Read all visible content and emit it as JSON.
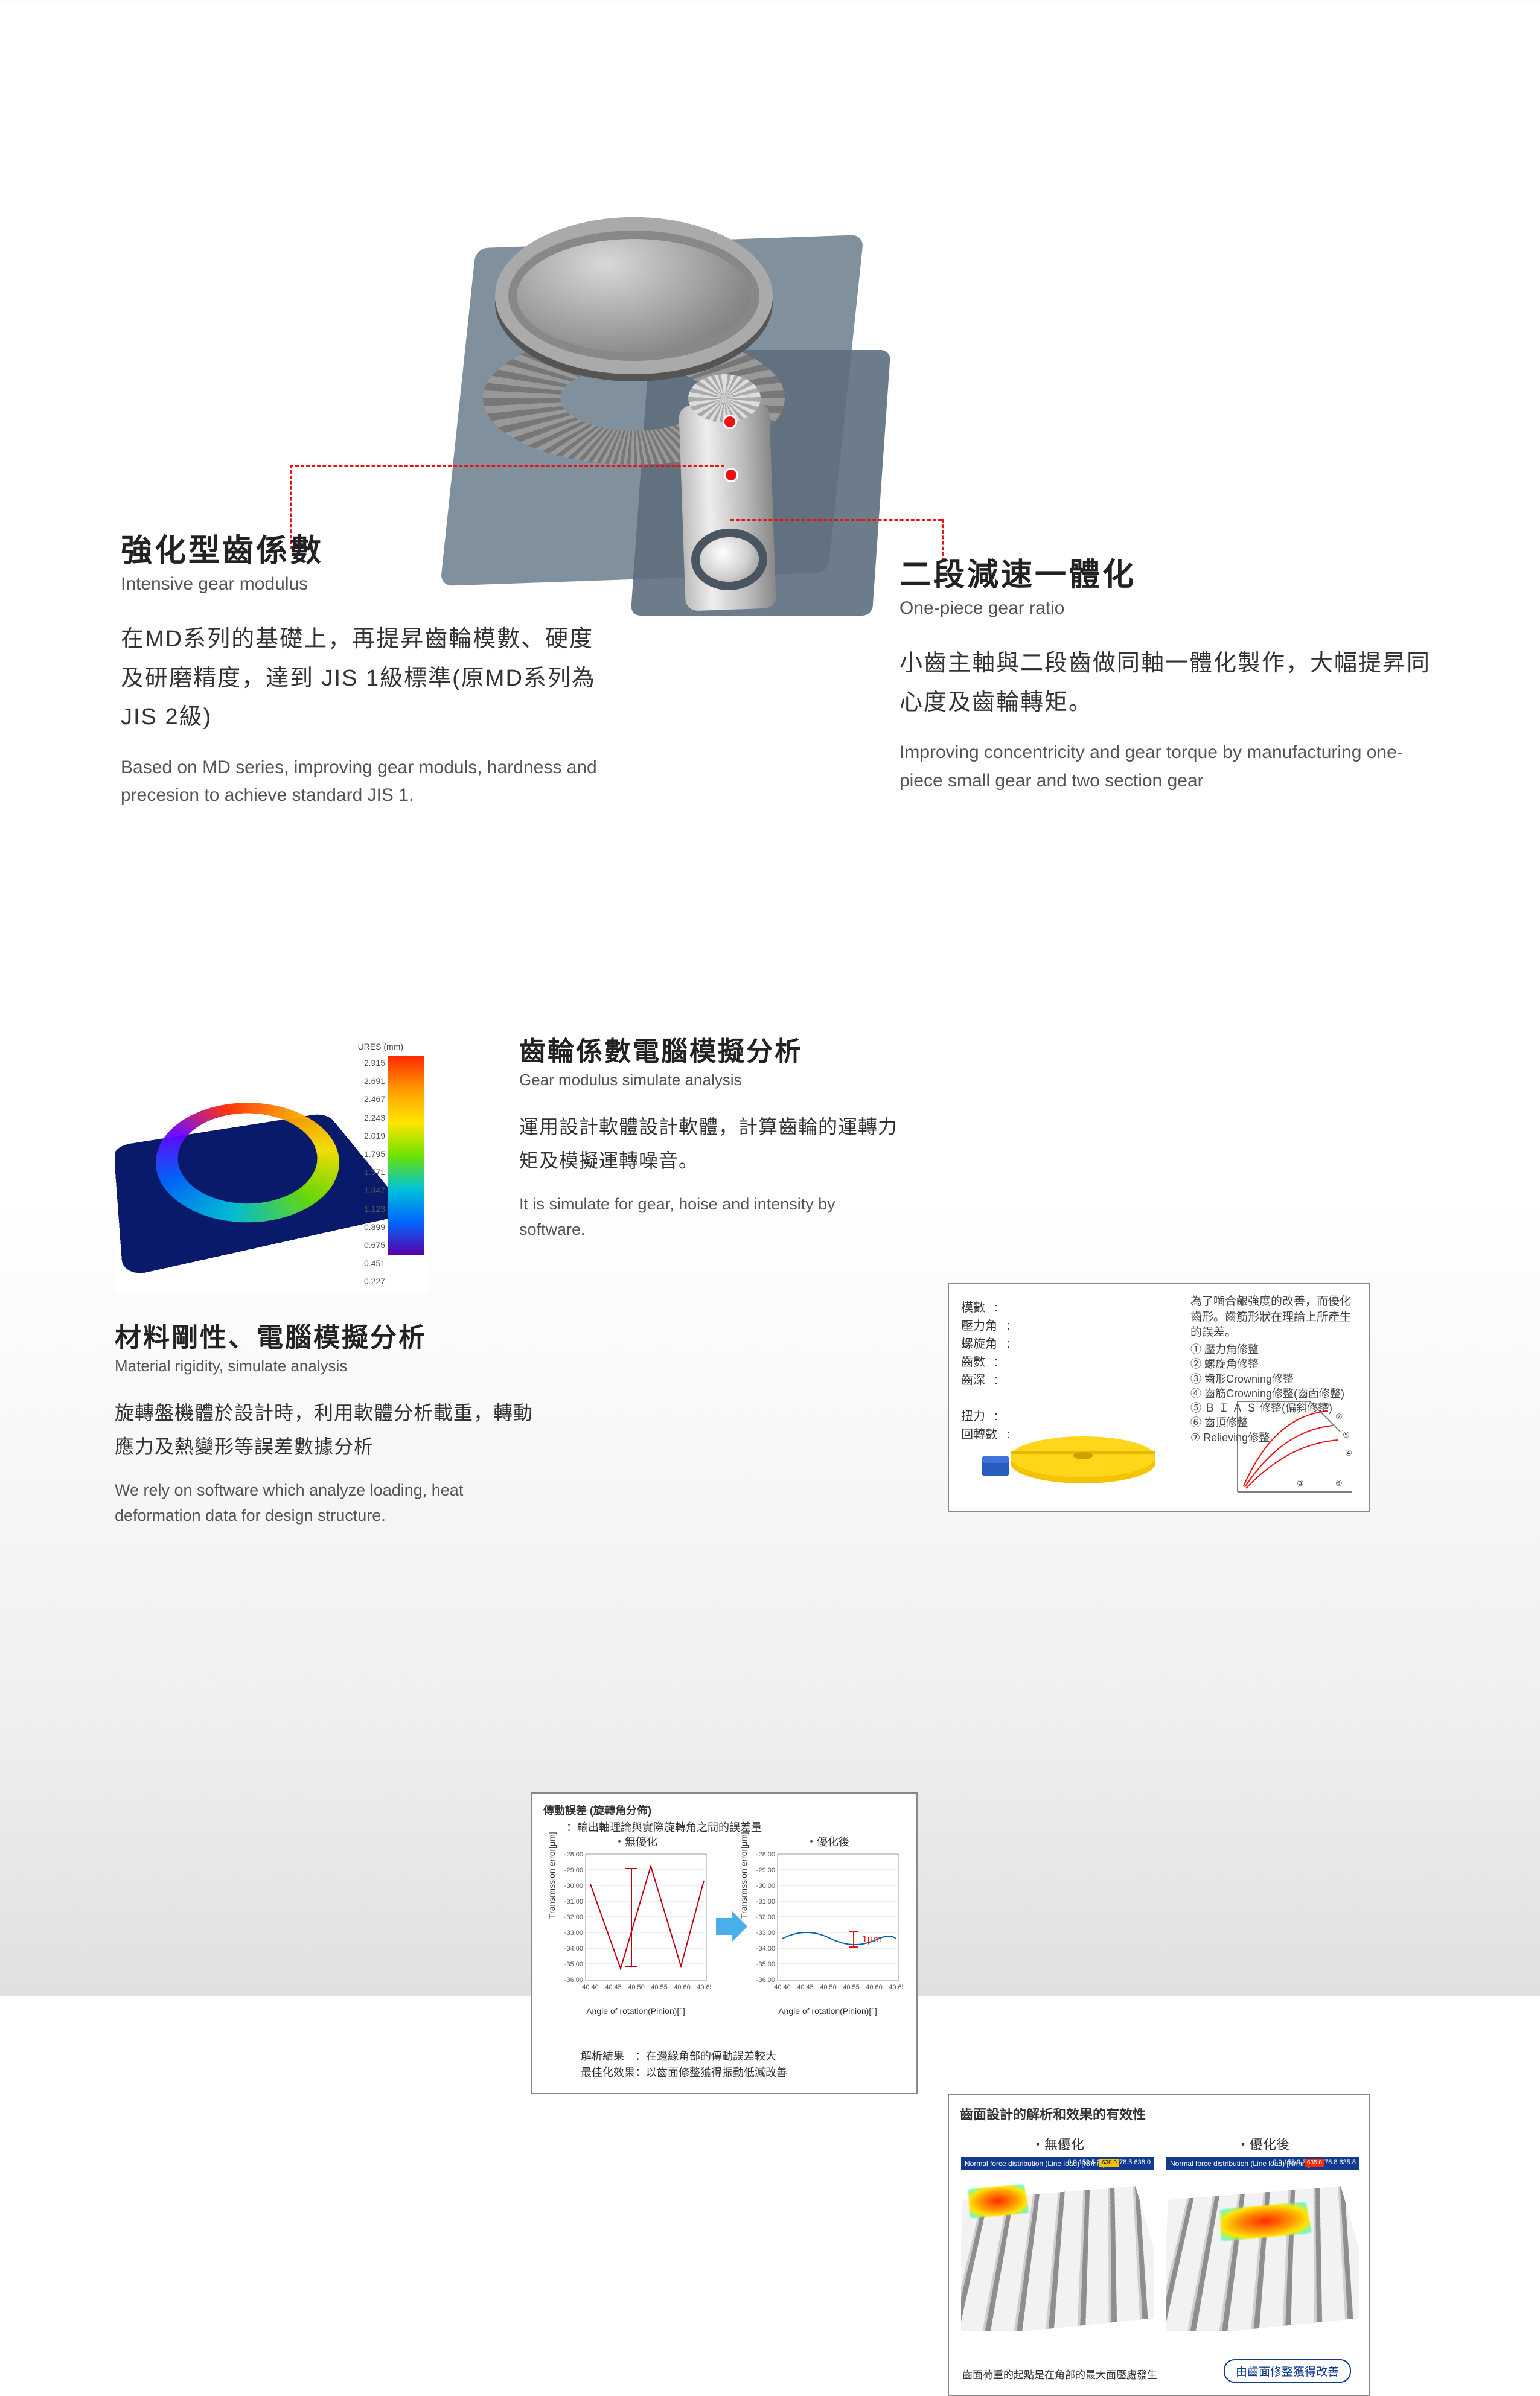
{
  "hero": {
    "left": {
      "title_zh": "強化型齒係數",
      "title_en": "Intensive gear modulus",
      "body_zh": "在MD系列的基礎上，再提昇齒輪模數、硬度及研磨精度，達到 JIS 1級標準(原MD系列為 JIS 2級)",
      "body_en": "Based on MD series, improving gear moduls, hardness and precesion to achieve standard JIS 1."
    },
    "right": {
      "title_zh": "二段減速一體化",
      "title_en": "One-piece gear ratio",
      "body_zh": "小齒主軸與二段齒做同軸一體化製作，大幅提昇同心度及齒輪轉矩。",
      "body_en": "Improving concentricity and gear torque by manufacturing one-piece small gear and two section gear"
    }
  },
  "material": {
    "title_zh": "材料剛性、電腦模擬分析",
    "title_en": "Material rigidity, simulate analysis",
    "body_zh": "旋轉盤機體於設計時，利用軟體分析載重，轉動應力及熱變形等誤差數據分析",
    "body_en": "We rely on software which analyze loading, heat deformation data for design structure.",
    "legend_title": "URES (mm)",
    "legend_ticks": [
      "2.915",
      "2.691",
      "2.467",
      "2.243",
      "2.019",
      "1.795",
      "1.571",
      "1.347",
      "1.123",
      "0.899",
      "0.675",
      "0.451",
      "0.227"
    ]
  },
  "modulus": {
    "title_zh": "齒輪係數電腦模擬分析",
    "title_en": "Gear modulus simulate analysis",
    "body_zh": "運用設計軟體設計軟體，計算齒輪的運轉力矩及模擬運轉噪音。",
    "body_en": "It is simulate for gear, hoise and intensity by software."
  },
  "param_box": {
    "labels": [
      "模數",
      "壓力角",
      "螺旋角",
      "齒數",
      "齒深",
      "",
      "扭力",
      "回轉數"
    ],
    "note": "為了嚙合齦強度的改善，而優化齒形。齒筋形狀在理論上所產生的誤差。",
    "list": [
      "① 壓力角修整",
      "② 螺旋角修整",
      "③ 齒形Crowning修整",
      "④ 齒筋Crowning修整(齒面修整)",
      "⑤ Ｂ Ｉ Ａ Ｓ 修整(偏斜修整)",
      "⑥ 齒頂修整",
      "⑦ Relieving修整"
    ],
    "gear_colors": {
      "disc": "#f4c400",
      "drive": "#2a5bbf"
    },
    "diagram": {
      "axis_color": "#555",
      "curve_color": "#e11",
      "markers": [
        "①",
        "②",
        "③",
        "④",
        "⑤",
        "⑥"
      ]
    }
  },
  "te_box": {
    "header": "傳動誤差 (旋轉角分佈)",
    "sub": "：輸出軸理論與實際旋轉角之間的誤差量",
    "left_chart": {
      "toplab": "・無優化",
      "yticks": [
        "-28.00",
        "-29.00",
        "-30.00",
        "-31.00",
        "-32.00",
        "-33.00",
        "-34.00",
        "-35.00",
        "-36.00"
      ],
      "xticks": [
        "40.40",
        "40.45",
        "40.50",
        "40.55",
        "40.60",
        "40.65"
      ],
      "ylabel": "Transmission error[μm]",
      "xlabel": "Angle of rotation(Pinion)[°]",
      "line_color": "#b01",
      "marker_color": "#b01"
    },
    "right_chart": {
      "toplab": "・優化後",
      "yticks": [
        "-28.00",
        "-29.00",
        "-30.00",
        "-31.00",
        "-32.00",
        "-33.00",
        "-34.00",
        "-35.00",
        "-36.00"
      ],
      "xticks": [
        "40.40",
        "40.45",
        "40.50",
        "40.55",
        "40.60",
        "40.65"
      ],
      "ylabel": "Transmission error[μm]",
      "xlabel": "Angle of rotation(Pinion)[°]",
      "line_color": "#06a",
      "anno": "1μm",
      "anno_color": "#e11"
    },
    "arrow_color": "#2aa0e6",
    "foot1": "解析結果　：在邊緣角部的傳動誤差較大",
    "foot2": "最佳化效果：以齒面修整獲得振動低減改善"
  },
  "ts_box": {
    "header": "齒面設計的解析和效果的有效性",
    "left_label": "・無優化",
    "right_label": "・優化後",
    "bar_text": "Normal force distribution (Line load) [N/mm]",
    "bar_nums_left": "0.0   159.5   319.0   478.5   638.0",
    "bar_nums_right": "0.0   158.9   317.9   476.8   635.8",
    "bar_accent_left": "#f4c400",
    "bar_accent_right": "#ff2a00",
    "left_caption": "齒面荷重的起點是在角部的最大面壓處發生",
    "right_pill": "由齒面修整獲得改善"
  },
  "colors": {
    "red": "#e11d1d",
    "body": "#333333",
    "muted": "#555555",
    "box_border": "#888888"
  }
}
